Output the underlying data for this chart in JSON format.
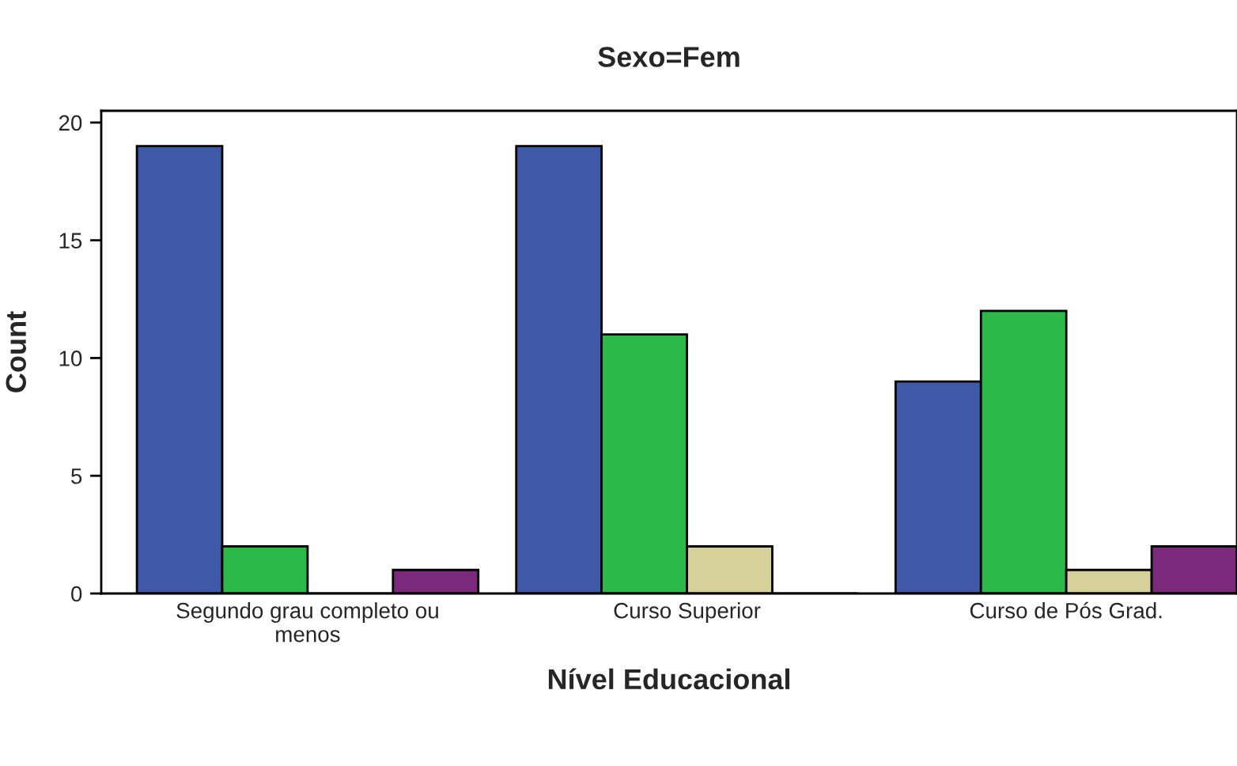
{
  "chart_data": {
    "type": "bar",
    "title": "Sexo=Fem",
    "xlabel": "Nível Educacional",
    "ylabel": "Count",
    "categories": [
      "Segundo grau completo ou\nmenos",
      "Curso Superior",
      "Curso de Pós Grad."
    ],
    "series": [
      {
        "color": "#3f58a8",
        "values": [
          19,
          19,
          9
        ]
      },
      {
        "color": "#2db84a",
        "values": [
          2,
          11,
          12
        ]
      },
      {
        "color": "#d6d09a",
        "values": [
          0,
          2,
          1
        ]
      },
      {
        "color": "#7b2a7b",
        "values": [
          1,
          0,
          2
        ]
      }
    ],
    "ylim": [
      0,
      20.5
    ],
    "yticks": [
      0,
      5,
      10,
      15,
      20
    ],
    "grid": false,
    "legend": false
  }
}
